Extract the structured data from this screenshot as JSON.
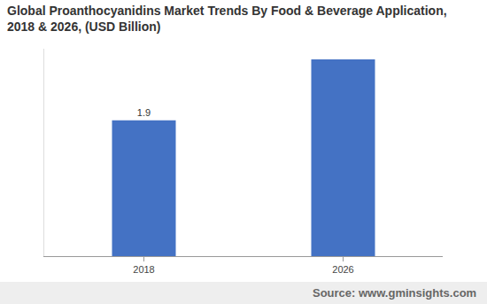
{
  "chart_data": {
    "type": "bar",
    "title": [
      "Global Proanthocyanidins Market Trends By Food & Beverage Application,",
      "2018 & 2026, (USD Billion)"
    ],
    "categories": [
      "2018",
      "2026"
    ],
    "values": [
      1.9,
      2.75
    ],
    "value_labels": [
      "1.9",
      null
    ],
    "data_labels": true,
    "color": "#4472c4",
    "ylim": [
      0,
      2.9
    ],
    "grid": false,
    "tick_labels": "x",
    "source": "Source: www.gminsights.com"
  }
}
